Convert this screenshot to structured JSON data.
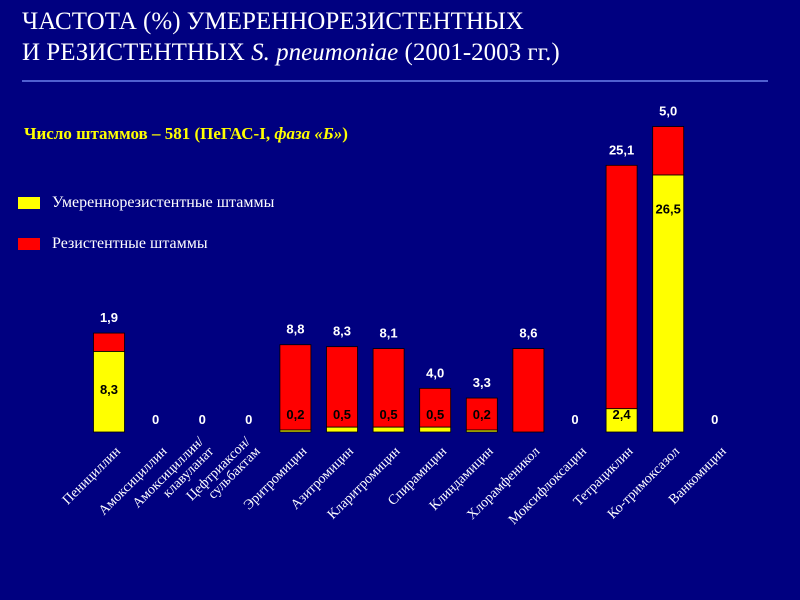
{
  "title_line1": "ЧАСТОТА (%) УМЕРЕННОРЕЗИСТЕНТНЫХ",
  "title_line2_prefix": "И РЕЗИСТЕНТНЫХ ",
  "title_line2_species": "S. pneumoniae",
  "title_line2_suffix": " (2001-2003 гг.)",
  "subtitle_prefix": "Число штаммов – 581 (ПеГАС-I, ",
  "subtitle_italic": "фаза «Б»",
  "subtitle_suffix": ")",
  "colors": {
    "background": "#000080",
    "moderate": "#ffff00",
    "resistant": "#ff0000",
    "title_rule": "#4f5fd0"
  },
  "chart_data": {
    "type": "bar",
    "stacked": true,
    "ylim": [
      0,
      33
    ],
    "grid": false,
    "legend": "left",
    "categories": [
      "Пенициллин",
      "Амоксициллин",
      "Амоксициллин/\nклавуланат",
      "Цефтриаксон/\nсульбактам",
      "Эритромицин",
      "Азитромицин",
      "Кларитромицин",
      "Спирамицин",
      "Клиндамицин",
      "Хлорамфеникол",
      "Моксифлоксацин",
      "Тетрациклин",
      "Ко-тримоксазол",
      "Ванкомицин"
    ],
    "series": [
      {
        "name": "Умереннорезистентные штаммы",
        "values": [
          8.3,
          0,
          0,
          0,
          0.2,
          0.5,
          0.5,
          0.5,
          0.2,
          0,
          0,
          2.4,
          26.5,
          0
        ],
        "labels": [
          "8,3",
          "",
          "",
          "",
          "0,2",
          "0,5",
          "0,5",
          "0,5",
          "0,2",
          "",
          "",
          "2,4",
          "26,5",
          ""
        ]
      },
      {
        "name": "Резистентные штаммы",
        "values": [
          1.9,
          0,
          0,
          0,
          8.8,
          8.3,
          8.1,
          4.0,
          3.3,
          8.6,
          0,
          25.1,
          5.0,
          0
        ],
        "labels": [
          "1,9",
          "0",
          "0",
          "0",
          "8,8",
          "8,3",
          "8,1",
          "4,0",
          "3,3",
          "8,6",
          "0",
          "25,1",
          "5,0",
          "0"
        ]
      }
    ]
  }
}
